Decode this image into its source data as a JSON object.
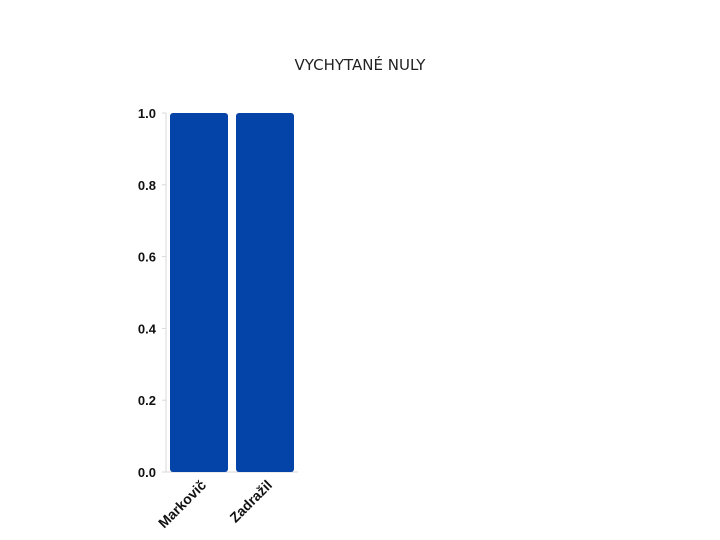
{
  "chart_data": {
    "type": "bar",
    "title": "VYCHYTANÉ NULY",
    "categories": [
      "Markovič",
      "Zadražil"
    ],
    "values": [
      1.0,
      1.0
    ],
    "xlabel": "",
    "ylabel": "",
    "ylim": [
      0,
      1.0
    ],
    "yticks": [
      "0.0",
      "0.2",
      "0.4",
      "0.6",
      "0.8",
      "1.0"
    ],
    "grid": false,
    "bar_color": "#0443a8"
  }
}
